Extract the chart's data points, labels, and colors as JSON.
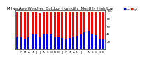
{
  "title": "Milwaukee Weather  Outdoor Humidity  Monthly High/Low",
  "months": [
    "J",
    "F",
    "M",
    "A",
    "M",
    "J",
    "J",
    "A",
    "S",
    "O",
    "N",
    "D",
    "J",
    "F",
    "M",
    "A",
    "M",
    "J",
    "J",
    "A",
    "S",
    "O",
    "N",
    "D"
  ],
  "high_values": [
    97,
    97,
    97,
    97,
    97,
    95,
    93,
    95,
    97,
    97,
    97,
    97,
    97,
    97,
    97,
    97,
    97,
    97,
    97,
    97,
    97,
    97,
    97,
    95
  ],
  "low_values": [
    30,
    32,
    27,
    30,
    37,
    38,
    33,
    37,
    39,
    37,
    33,
    30,
    28,
    25,
    28,
    31,
    34,
    37,
    43,
    47,
    40,
    35,
    27,
    25
  ],
  "bar_color_high": "#FF0000",
  "bar_color_low": "#0000FF",
  "bg_color": "#FFFFFF",
  "plot_bg": "#FFFFFF",
  "ylim": [
    0,
    100
  ],
  "yticks": [
    20,
    40,
    60,
    80,
    100
  ],
  "legend_high": "High",
  "legend_low": "Low",
  "title_fontsize": 3.8,
  "tick_fontsize": 2.8,
  "bar_width": 0.55
}
